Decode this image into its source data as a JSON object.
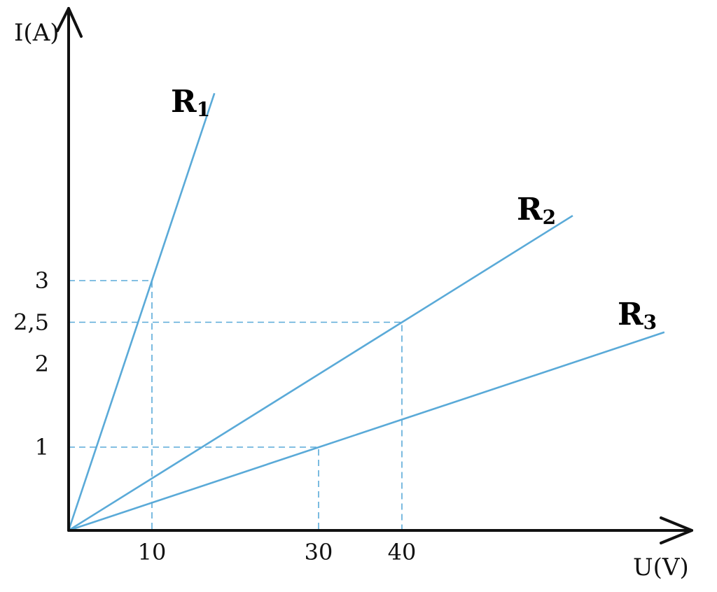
{
  "chart_data": {
    "type": "line",
    "xlabel": "U(V)",
    "ylabel": "I(A)",
    "x_ticks": [
      "10",
      "30",
      "40"
    ],
    "y_ticks": [
      "1",
      "2",
      "2,5",
      "3"
    ],
    "x_tick_values": [
      10,
      30,
      40
    ],
    "y_tick_values": [
      1,
      2,
      2.5,
      3
    ],
    "xlim": [
      0,
      75
    ],
    "ylim": [
      0,
      6
    ],
    "grid": false,
    "series": [
      {
        "name": "R",
        "sub": "1",
        "x": [
          0,
          17.5
        ],
        "y": [
          0,
          5.25
        ]
      },
      {
        "name": "R",
        "sub": "2",
        "x": [
          0,
          60.5
        ],
        "y": [
          0,
          3.78
        ]
      },
      {
        "name": "R",
        "sub": "3",
        "x": [
          0,
          71.5
        ],
        "y": [
          0,
          2.38
        ]
      }
    ],
    "guides": [
      {
        "x": 10,
        "y": 3
      },
      {
        "x": 40,
        "y": 2.5
      },
      {
        "x": 30,
        "y": 1
      }
    ],
    "colors": {
      "series": "#5aaad8",
      "guide": "#5aaad8",
      "axis": "#111111"
    }
  }
}
